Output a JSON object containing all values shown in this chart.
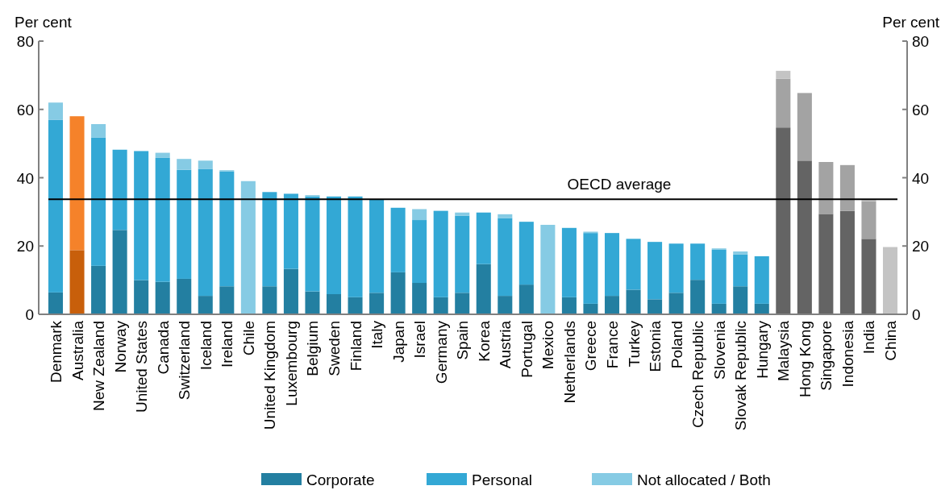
{
  "chart_data": {
    "type": "bar",
    "stacked": true,
    "ylabel": "Per cent",
    "y2label": "Per cent",
    "categories": [
      "Denmark",
      "Australia",
      "New Zealand",
      "Norway",
      "United States",
      "Canada",
      "Switzerland",
      "Iceland",
      "Ireland",
      "Chile",
      "United Kingdom",
      "Luxembourg",
      "Belgium",
      "Sweden",
      "Finland",
      "Italy",
      "Japan",
      "Israel",
      "Germany",
      "Spain",
      "Korea",
      "Austria",
      "Portugal",
      "Mexico",
      "Netherlands",
      "Greece",
      "France",
      "Turkey",
      "Estonia",
      "Poland",
      "Czech Republic",
      "Slovenia",
      "Slovak Republic",
      "Hungary",
      "Malaysia",
      "Hong Kong",
      "Singapore",
      "Indonesia",
      "India",
      "China"
    ],
    "series": [
      {
        "name": "Corporate",
        "color": "#237fa1",
        "values": [
          6.4,
          18.8,
          14.2,
          24.7,
          10,
          9.5,
          10.4,
          5.4,
          8.2,
          0,
          8.2,
          13.3,
          6.7,
          5.9,
          5,
          6.3,
          12.3,
          9.2,
          5,
          6.3,
          14.7,
          5.4,
          8.7,
          0,
          5,
          3.1,
          5.4,
          7.2,
          4.4,
          6.3,
          10.1,
          3.1,
          8.2,
          3.1,
          54.7,
          45,
          29.4,
          30.3,
          22.1,
          0
        ],
        "colors": [
          "#237fa1",
          "#c85f0b",
          "#237fa1",
          "#237fa1",
          "#237fa1",
          "#237fa1",
          "#237fa1",
          "#237fa1",
          "#237fa1",
          "#237fa1",
          "#237fa1",
          "#237fa1",
          "#237fa1",
          "#237fa1",
          "#237fa1",
          "#237fa1",
          "#237fa1",
          "#237fa1",
          "#237fa1",
          "#237fa1",
          "#237fa1",
          "#237fa1",
          "#237fa1",
          "#237fa1",
          "#237fa1",
          "#237fa1",
          "#237fa1",
          "#237fa1",
          "#237fa1",
          "#237fa1",
          "#237fa1",
          "#237fa1",
          "#237fa1",
          "#237fa1",
          "#646464",
          "#646464",
          "#646464",
          "#646464",
          "#646464",
          "#646464"
        ]
      },
      {
        "name": "Personal",
        "color": "#33a8d5",
        "values": [
          50.5,
          39.2,
          37.6,
          23.5,
          37.8,
          36.3,
          31.9,
          37.2,
          33.6,
          0,
          27.6,
          22,
          27.8,
          28.6,
          29.5,
          27.3,
          18.9,
          18.4,
          25.3,
          22.6,
          15.1,
          22.8,
          18.4,
          0,
          20.3,
          20.7,
          18.4,
          14.9,
          16.8,
          14.4,
          10.6,
          15.8,
          9.3,
          13.9,
          14.3,
          19.8,
          15.2,
          13.4,
          11,
          0
        ],
        "colors": [
          "#33a8d5",
          "#f5822a",
          "#33a8d5",
          "#33a8d5",
          "#33a8d5",
          "#33a8d5",
          "#33a8d5",
          "#33a8d5",
          "#33a8d5",
          "#33a8d5",
          "#33a8d5",
          "#33a8d5",
          "#33a8d5",
          "#33a8d5",
          "#33a8d5",
          "#33a8d5",
          "#33a8d5",
          "#33a8d5",
          "#33a8d5",
          "#33a8d5",
          "#33a8d5",
          "#33a8d5",
          "#33a8d5",
          "#33a8d5",
          "#33a8d5",
          "#33a8d5",
          "#33a8d5",
          "#33a8d5",
          "#33a8d5",
          "#33a8d5",
          "#33a8d5",
          "#33a8d5",
          "#33a8d5",
          "#33a8d5",
          "#a3a3a3",
          "#a3a3a3",
          "#a3a3a3",
          "#a3a3a3",
          "#a3a3a3",
          "#a3a3a3"
        ]
      },
      {
        "name": "Not allocated / Both",
        "color": "#86cbe4",
        "values": [
          5.1,
          0,
          3.9,
          0,
          0,
          1.5,
          3.2,
          2.4,
          0.4,
          39,
          0,
          0,
          0.4,
          0,
          0,
          0,
          0,
          3.2,
          0,
          0.9,
          0,
          1.1,
          0,
          26.2,
          0,
          0.4,
          0,
          0,
          0,
          0,
          0,
          0.4,
          0.9,
          0,
          2.3,
          0,
          0,
          0,
          0.5,
          19.7
        ],
        "colors": [
          "#86cbe4",
          "#86cbe4",
          "#86cbe4",
          "#86cbe4",
          "#86cbe4",
          "#86cbe4",
          "#86cbe4",
          "#86cbe4",
          "#86cbe4",
          "#86cbe4",
          "#86cbe4",
          "#86cbe4",
          "#86cbe4",
          "#86cbe4",
          "#86cbe4",
          "#86cbe4",
          "#86cbe4",
          "#86cbe4",
          "#86cbe4",
          "#86cbe4",
          "#86cbe4",
          "#86cbe4",
          "#86cbe4",
          "#86cbe4",
          "#86cbe4",
          "#86cbe4",
          "#86cbe4",
          "#86cbe4",
          "#86cbe4",
          "#86cbe4",
          "#86cbe4",
          "#86cbe4",
          "#86cbe4",
          "#86cbe4",
          "#c4c4c4",
          "#c4c4c4",
          "#c4c4c4",
          "#c4c4c4",
          "#c4c4c4",
          "#c4c4c4"
        ]
      }
    ],
    "ylim": [
      0,
      80
    ],
    "yticks": [
      0,
      20,
      40,
      60,
      80
    ],
    "y2lim": [
      0,
      80
    ],
    "y2ticks": [
      0,
      20,
      40,
      60,
      80
    ],
    "ref_lines": [
      {
        "axis": "y",
        "value": 33.7,
        "label": "OECD average",
        "color": "#000000"
      }
    ],
    "grid": false,
    "legend": "bottom"
  }
}
